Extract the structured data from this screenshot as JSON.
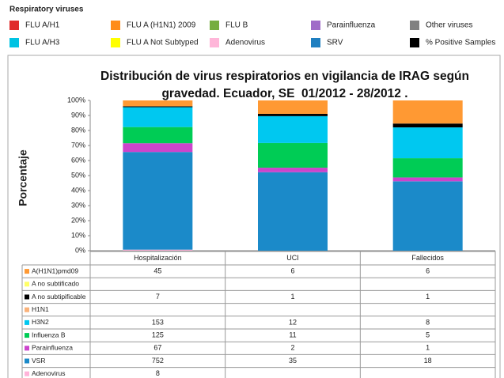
{
  "legend": {
    "title": "Respiratory viruses",
    "items": [
      {
        "label": "FLU A/H1",
        "color": "#e02a2a"
      },
      {
        "label": "FLU A (H1N1) 2009",
        "color": "#ff8c1a"
      },
      {
        "label": "FLU B",
        "color": "#76ad3f"
      },
      {
        "label": "Parainfluenza",
        "color": "#a06cc8"
      },
      {
        "label": "Other viruses",
        "color": "#808080"
      },
      {
        "label": "FLU A/H3",
        "color": "#00c3e3"
      },
      {
        "label": "FLU A Not Subtyped",
        "color": "#ffff00"
      },
      {
        "label": "Adenovirus",
        "color": "#ffb6d9"
      },
      {
        "label": "SRV",
        "color": "#1f7fc0"
      },
      {
        "label": "% Positive Samples",
        "color": "#000000"
      }
    ]
  },
  "chart_data": {
    "type": "bar",
    "stacked": "percent",
    "title": "Distribución de virus respiratorios en vigilancia de IRAG según gravedad. Ecuador, SE  01/2012 - 28/2012 .",
    "y_label": "Porcentaje",
    "categories": [
      "Hospitalización",
      "UCI",
      "Fallecidos"
    ],
    "ylim": [
      0,
      100
    ],
    "yticks": [
      {
        "value": 0,
        "label": "0%"
      },
      {
        "value": 10,
        "label": "10%"
      },
      {
        "value": 20,
        "label": "20%"
      },
      {
        "value": 30,
        "label": "30%"
      },
      {
        "value": 40,
        "label": "40%"
      },
      {
        "value": 50,
        "label": "50%"
      },
      {
        "value": 60,
        "label": "60%"
      },
      {
        "value": 70,
        "label": "70%"
      },
      {
        "value": 80,
        "label": "80%"
      },
      {
        "value": 90,
        "label": "90%"
      },
      {
        "value": 100,
        "label": "100%"
      }
    ],
    "series": [
      {
        "name": "A(H1N1)pmd09",
        "color": "#ff9933",
        "values": [
          45,
          6,
          6
        ]
      },
      {
        "name": "A no subtificado",
        "color": "#ffff66",
        "values": [
          null,
          null,
          null
        ]
      },
      {
        "name": "A no subtipificable",
        "color": "#000000",
        "values": [
          7,
          1,
          1
        ]
      },
      {
        "name": "H1N1",
        "color": "#fab27a",
        "values": [
          null,
          null,
          null
        ]
      },
      {
        "name": "H3N2",
        "color": "#00c8f0",
        "values": [
          153,
          12,
          8
        ]
      },
      {
        "name": "Influenza B",
        "color": "#00cc55",
        "values": [
          125,
          11,
          5
        ]
      },
      {
        "name": "Parainfluenza",
        "color": "#cc44cc",
        "values": [
          67,
          2,
          1
        ]
      },
      {
        "name": "VSR",
        "color": "#1b8ac9",
        "values": [
          752,
          35,
          18
        ]
      },
      {
        "name": "Adenovirus",
        "color": "#ffb3d9",
        "values": [
          8,
          null,
          null
        ]
      }
    ]
  }
}
